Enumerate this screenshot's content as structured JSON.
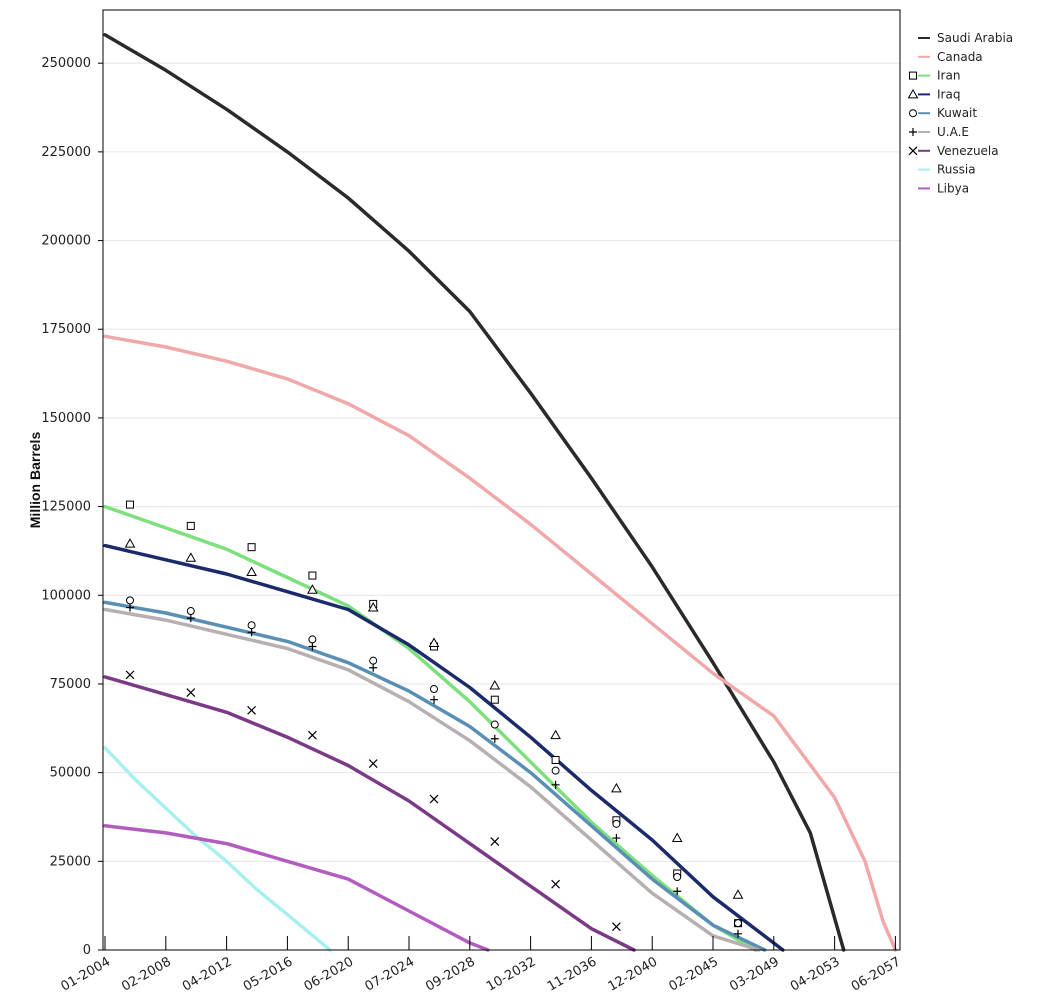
{
  "chart_data": {
    "type": "line",
    "title": "",
    "xlabel": "",
    "ylabel": "Million Barrels",
    "x_tick_labels": [
      "01-2004",
      "02-2008",
      "04-2012",
      "05-2016",
      "06-2020",
      "07-2024",
      "09-2028",
      "10-2032",
      "11-2036",
      "12-2040",
      "02-2045",
      "03-2049",
      "04-2053",
      "06-2057"
    ],
    "ylim": [
      0,
      265000
    ],
    "y_ticks": [
      0,
      25000,
      50000,
      75000,
      100000,
      125000,
      150000,
      175000,
      200000,
      225000,
      250000
    ],
    "grid": "horizontal",
    "legend_position": "top-right",
    "series": [
      {
        "name": "Saudi Arabia",
        "color": "#2a2a2a",
        "marker": "none",
        "points": [
          [
            0,
            258000
          ],
          [
            1,
            248000
          ],
          [
            2,
            237000
          ],
          [
            3,
            225000
          ],
          [
            4,
            212000
          ],
          [
            5,
            197000
          ],
          [
            6,
            180000
          ],
          [
            7,
            157000
          ],
          [
            8,
            133000
          ],
          [
            9,
            108000
          ],
          [
            10,
            81000
          ],
          [
            11,
            53000
          ],
          [
            11.6,
            33000
          ],
          [
            12,
            9000
          ],
          [
            12.15,
            0
          ]
        ]
      },
      {
        "name": "Canada",
        "color": "#f0a8a8",
        "marker": "none",
        "points": [
          [
            0,
            173000
          ],
          [
            1,
            170000
          ],
          [
            2,
            166000
          ],
          [
            3,
            161000
          ],
          [
            4,
            154000
          ],
          [
            5,
            145000
          ],
          [
            6,
            133000
          ],
          [
            7,
            120000
          ],
          [
            8,
            106000
          ],
          [
            9,
            92000
          ],
          [
            10,
            78000
          ],
          [
            11,
            66000
          ],
          [
            12,
            43000
          ],
          [
            12.5,
            25000
          ],
          [
            12.8,
            8000
          ],
          [
            13,
            0
          ]
        ]
      },
      {
        "name": "Iran",
        "color": "#7de07d",
        "marker": "square",
        "points": [
          [
            0,
            125000
          ],
          [
            1,
            119000
          ],
          [
            2,
            113000
          ],
          [
            3,
            105000
          ],
          [
            4,
            97000
          ],
          [
            5,
            85000
          ],
          [
            6,
            70000
          ],
          [
            7,
            53000
          ],
          [
            8,
            36000
          ],
          [
            9,
            21000
          ],
          [
            10,
            7000
          ],
          [
            10.7,
            0
          ]
        ]
      },
      {
        "name": "Iraq",
        "color": "#1b2a6b",
        "marker": "triangle",
        "points": [
          [
            0,
            114000
          ],
          [
            1,
            110000
          ],
          [
            2,
            106000
          ],
          [
            3,
            101000
          ],
          [
            4,
            96000
          ],
          [
            5,
            86000
          ],
          [
            6,
            74000
          ],
          [
            7,
            60000
          ],
          [
            8,
            45000
          ],
          [
            9,
            31000
          ],
          [
            10,
            15000
          ],
          [
            11.15,
            0
          ]
        ]
      },
      {
        "name": "Kuwait",
        "color": "#5a8fb5",
        "marker": "circle",
        "points": [
          [
            0,
            98000
          ],
          [
            1,
            95000
          ],
          [
            2,
            91000
          ],
          [
            3,
            87000
          ],
          [
            4,
            81000
          ],
          [
            5,
            73000
          ],
          [
            6,
            63000
          ],
          [
            7,
            50000
          ],
          [
            8,
            35000
          ],
          [
            9,
            20000
          ],
          [
            10,
            7000
          ],
          [
            10.85,
            0
          ]
        ]
      },
      {
        "name": "U.A.E",
        "color": "#b8b0b0",
        "marker": "plus",
        "points": [
          [
            0,
            96000
          ],
          [
            1,
            93000
          ],
          [
            2,
            89000
          ],
          [
            3,
            85000
          ],
          [
            4,
            79000
          ],
          [
            5,
            70000
          ],
          [
            6,
            59000
          ],
          [
            7,
            46000
          ],
          [
            8,
            31000
          ],
          [
            9,
            16000
          ],
          [
            10,
            4000
          ],
          [
            10.75,
            0
          ]
        ]
      },
      {
        "name": "Venezuela",
        "color": "#7a3a86",
        "marker": "cross",
        "points": [
          [
            0,
            77000
          ],
          [
            1,
            72000
          ],
          [
            2,
            67000
          ],
          [
            3,
            60000
          ],
          [
            4,
            52000
          ],
          [
            5,
            42000
          ],
          [
            6,
            30000
          ],
          [
            7,
            18000
          ],
          [
            8,
            6000
          ],
          [
            8.7,
            0
          ]
        ]
      },
      {
        "name": "Russia",
        "color": "#a8f0f0",
        "marker": "none",
        "points": [
          [
            0,
            57000
          ],
          [
            0.5,
            48000
          ],
          [
            1,
            40000
          ],
          [
            1.5,
            32000
          ],
          [
            2,
            25000
          ],
          [
            2.5,
            17000
          ],
          [
            3,
            10000
          ],
          [
            3.7,
            0
          ]
        ]
      },
      {
        "name": "Libya",
        "color": "#b25cc0",
        "marker": "none",
        "points": [
          [
            0,
            35000
          ],
          [
            1,
            33000
          ],
          [
            2,
            30000
          ],
          [
            3,
            25000
          ],
          [
            4,
            20000
          ],
          [
            5,
            11000
          ],
          [
            6,
            2000
          ],
          [
            6.3,
            0
          ]
        ]
      }
    ]
  }
}
